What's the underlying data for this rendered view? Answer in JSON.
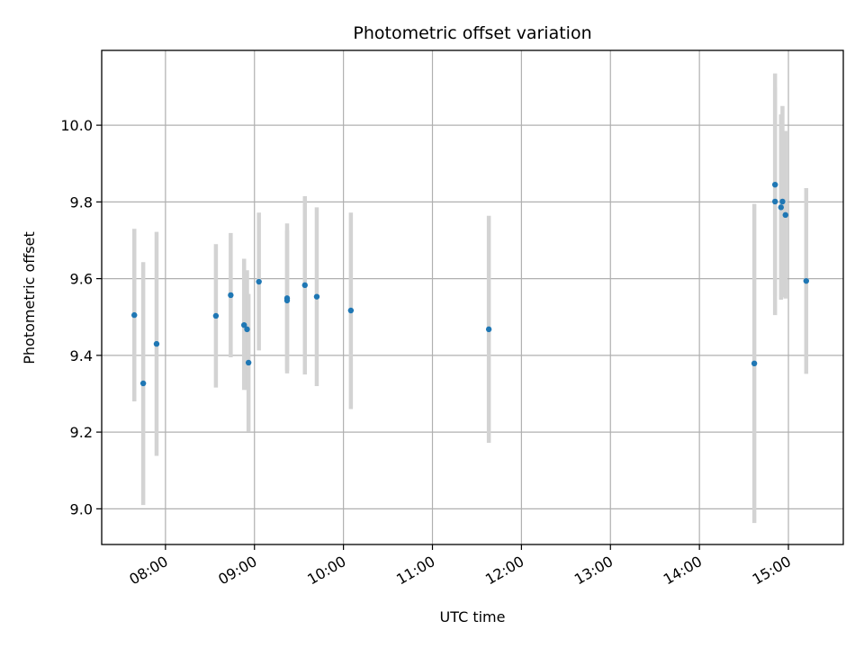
{
  "colors": {
    "point": "#1f77b4",
    "errorbar": "#d3d3d3",
    "grid": "#b0b0b0",
    "axes": "#000000"
  },
  "chart_data": {
    "type": "scatter",
    "title": "Photometric offset variation",
    "xlabel": "UTC time",
    "ylabel": "Photometric offset",
    "grid": true,
    "x_axis": "time",
    "xlim": [
      "07:17",
      "15:37"
    ],
    "ylim": [
      8.907,
      10.195
    ],
    "x_ticks": [
      "08:00",
      "09:00",
      "10:00",
      "11:00",
      "12:00",
      "13:00",
      "14:00",
      "15:00"
    ],
    "y_ticks": [
      "9.0",
      "9.2",
      "9.4",
      "9.6",
      "9.8",
      "10.0"
    ],
    "series": [
      {
        "points": [
          {
            "x": "07:39",
            "y": 9.505,
            "ylow": 9.28,
            "yhigh": 9.73
          },
          {
            "x": "07:45",
            "y": 9.327,
            "ylow": 9.01,
            "yhigh": 9.643
          },
          {
            "x": "07:54",
            "y": 9.43,
            "ylow": 9.138,
            "yhigh": 9.722
          },
          {
            "x": "08:34",
            "y": 9.503,
            "ylow": 9.316,
            "yhigh": 9.69
          },
          {
            "x": "08:44",
            "y": 9.557,
            "ylow": 9.395,
            "yhigh": 9.719
          },
          {
            "x": "08:53",
            "y": 9.479,
            "ylow": 9.31,
            "yhigh": 9.652
          },
          {
            "x": "08:55",
            "y": 9.468,
            "ylow": 9.31,
            "yhigh": 9.622
          },
          {
            "x": "08:56",
            "y": 9.381,
            "ylow": 9.202,
            "yhigh": 9.56
          },
          {
            "x": "09:03",
            "y": 9.592,
            "ylow": 9.413,
            "yhigh": 9.772
          },
          {
            "x": "09:22",
            "y": 9.549,
            "ylow": 9.353,
            "yhigh": 9.744
          },
          {
            "x": "09:22",
            "y": 9.543,
            "ylow": 9.36,
            "yhigh": 9.726
          },
          {
            "x": "09:34",
            "y": 9.583,
            "ylow": 9.35,
            "yhigh": 9.815
          },
          {
            "x": "09:42",
            "y": 9.553,
            "ylow": 9.32,
            "yhigh": 9.786
          },
          {
            "x": "10:05",
            "y": 9.517,
            "ylow": 9.26,
            "yhigh": 9.772
          },
          {
            "x": "11:38",
            "y": 9.468,
            "ylow": 9.172,
            "yhigh": 9.764
          },
          {
            "x": "14:37",
            "y": 9.379,
            "ylow": 8.963,
            "yhigh": 9.795
          },
          {
            "x": "14:51",
            "y": 9.845,
            "ylow": 9.555,
            "yhigh": 10.135
          },
          {
            "x": "14:51",
            "y": 9.801,
            "ylow": 9.505,
            "yhigh": 10.097
          },
          {
            "x": "14:55",
            "y": 9.786,
            "ylow": 9.545,
            "yhigh": 10.028
          },
          {
            "x": "14:56",
            "y": 9.801,
            "ylow": 9.552,
            "yhigh": 10.05
          },
          {
            "x": "14:58",
            "y": 9.766,
            "ylow": 9.548,
            "yhigh": 9.985
          },
          {
            "x": "15:12",
            "y": 9.594,
            "ylow": 9.352,
            "yhigh": 9.836
          }
        ]
      }
    ]
  }
}
